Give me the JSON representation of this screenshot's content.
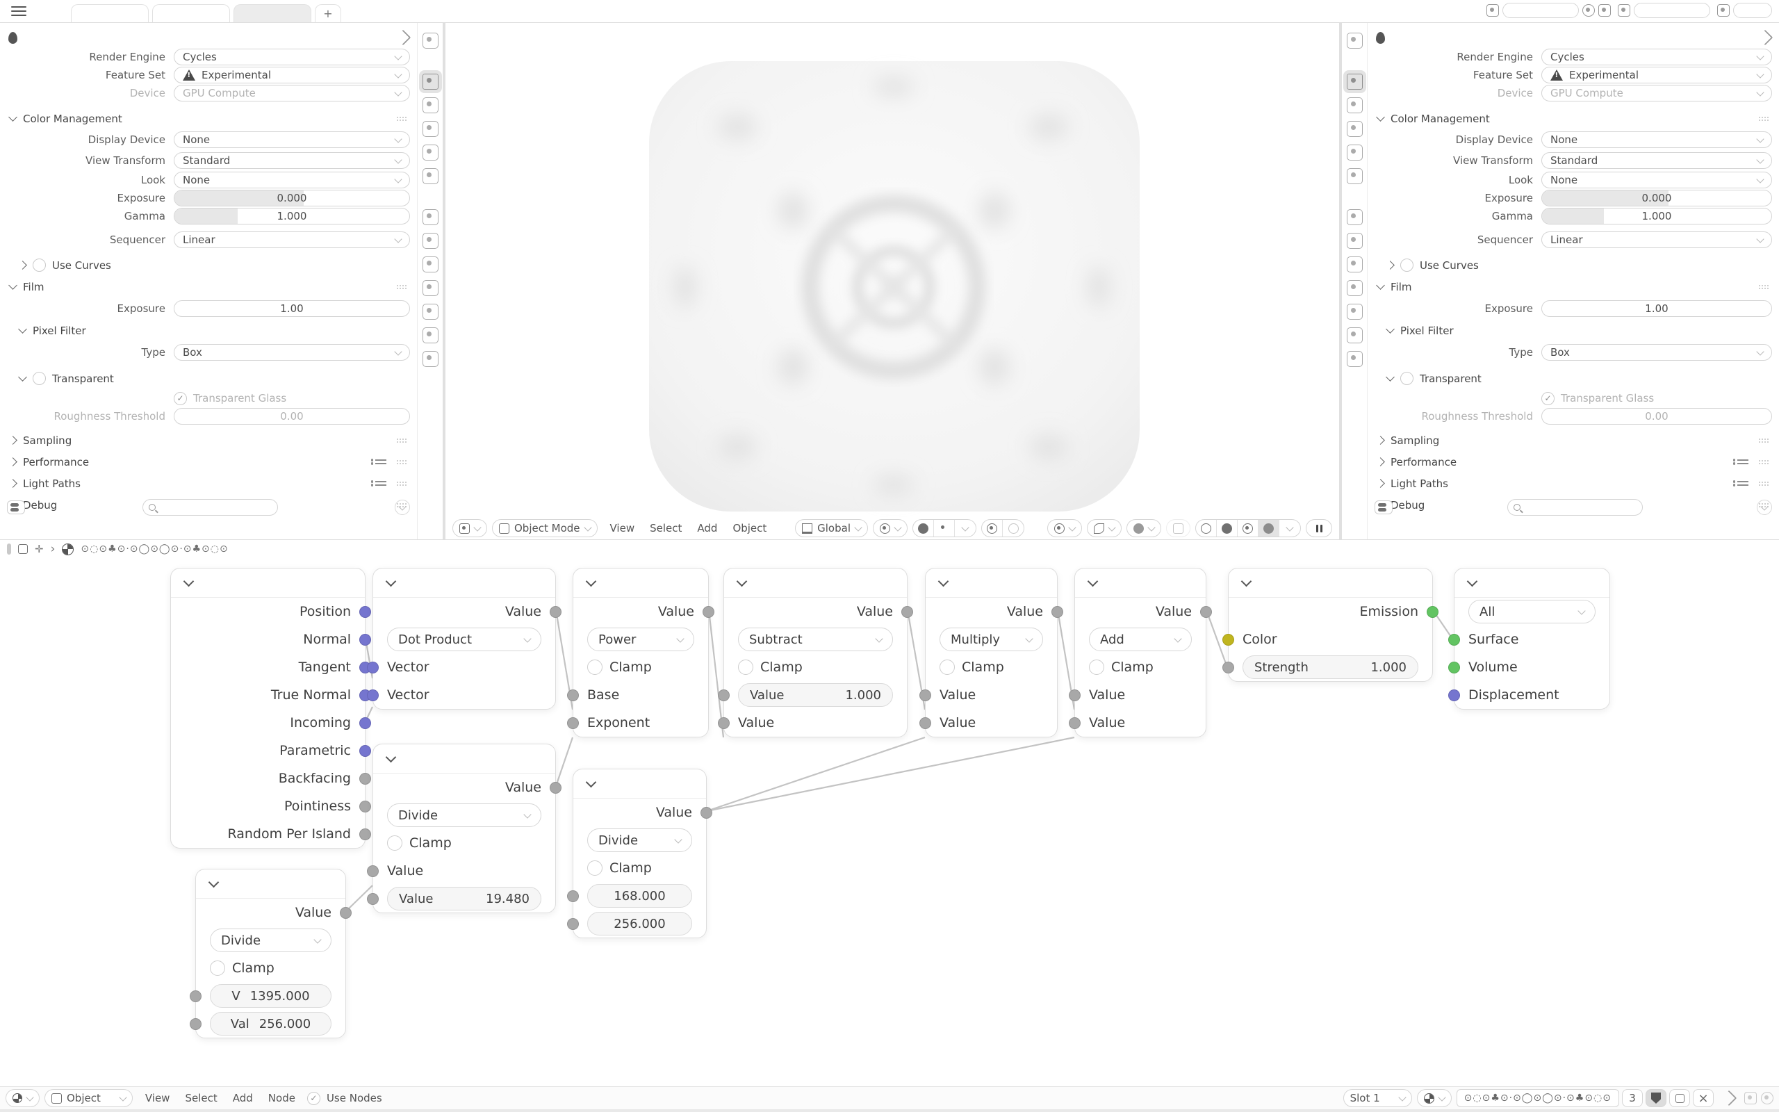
{
  "topbar": {
    "tabs": [
      "",
      "",
      ""
    ],
    "new_tab": "+"
  },
  "props": {
    "render_engine": {
      "label": "Render Engine",
      "value": "Cycles"
    },
    "feature_set": {
      "label": "Feature Set",
      "value": "Experimental"
    },
    "device": {
      "label": "Device",
      "value": "GPU Compute"
    },
    "color_management": "Color Management",
    "display_device": {
      "label": "Display Device",
      "value": "None"
    },
    "view_transform": {
      "label": "View Transform",
      "value": "Standard"
    },
    "look": {
      "label": "Look",
      "value": "None"
    },
    "exposure": {
      "label": "Exposure",
      "value": "0.000"
    },
    "gamma": {
      "label": "Gamma",
      "value": "1.000"
    },
    "sequencer": {
      "label": "Sequencer",
      "value": "Linear"
    },
    "use_curves": "Use Curves",
    "film": "Film",
    "film_exposure": {
      "label": "Exposure",
      "value": "1.00"
    },
    "pixel_filter": "Pixel Filter",
    "type": {
      "label": "Type",
      "value": "Box"
    },
    "transparent": "Transparent",
    "transparent_glass": "Transparent Glass",
    "roughness_threshold": {
      "label": "Roughness Threshold",
      "value": "0.00"
    },
    "sampling": "Sampling",
    "performance": "Performance",
    "light_paths": "Light Paths",
    "debug": "Debug",
    "tab_icons": [
      "tool-icon",
      "render-icon",
      "output-icon",
      "view-layer-icon",
      "scene-icon",
      "world-icon",
      "object-icon",
      "modifiers-icon",
      "particles-icon",
      "physics-icon",
      "constraints-icon",
      "object-data-icon",
      "material-icon"
    ]
  },
  "viewport": {
    "mode": "Object Mode",
    "menus": [
      "View",
      "Select",
      "Add",
      "Object"
    ],
    "orientation": "Global",
    "header_icons": [
      "editor-type-icon",
      "proportional-icon",
      "snap-magnet-icon",
      "pivot-icon",
      "visibility-icon",
      "gizmo-icon",
      "overlays-icon",
      "xray-icon",
      "shading-wireframe-icon",
      "shading-solid-icon",
      "shading-material-icon",
      "shading-rendered-icon",
      "pause-icon"
    ]
  },
  "node_editor": {
    "breadcrumb": {
      "separator": "›",
      "material": "⊙◌⊙♣⊙·⊙◯⊙◯⊙·⊙♣⊙◌⊙"
    },
    "footer": {
      "object": "Object",
      "menus": [
        "View",
        "Select",
        "Add",
        "Node"
      ],
      "use_nodes": "Use Nodes",
      "slot": "Slot 1",
      "material_name": "⊙◌⊙♣⊙·⊙◯⊙◯⊙·⊙♣⊙◌⊙",
      "users_count": "3"
    },
    "nodes": {
      "geometry": {
        "outputs": [
          "Position",
          "Normal",
          "Tangent",
          "True Normal",
          "Incoming",
          "Parametric",
          "Backfacing",
          "Pointiness",
          "Random Per Island"
        ]
      },
      "vector_math": {
        "output": "Value",
        "operation": "Dot Product",
        "inputs": [
          "Vector",
          "Vector"
        ]
      },
      "math_divide_a": {
        "output": "Value",
        "operation": "Divide",
        "clamp": "Clamp",
        "input": "Value",
        "field_label": "Value",
        "field_value": "19.480"
      },
      "math_power": {
        "output": "Value",
        "operation": "Power",
        "clamp": "Clamp",
        "inputs": [
          "Base",
          "Exponent"
        ]
      },
      "math_divide_b": {
        "output": "Value",
        "operation": "Divide",
        "clamp": "Clamp",
        "fields": [
          "168.000",
          "256.000"
        ]
      },
      "math_subtract": {
        "output": "Value",
        "operation": "Subtract",
        "clamp": "Clamp",
        "field_label": "Value",
        "field_value": "1.000",
        "input": "Value"
      },
      "math_multiply": {
        "output": "Value",
        "operation": "Multiply",
        "clamp": "Clamp",
        "inputs": [
          "Value",
          "Value"
        ]
      },
      "math_add": {
        "output": "Value",
        "operation": "Add",
        "clamp": "Clamp",
        "inputs": [
          "Value",
          "Value"
        ]
      },
      "math_divide_c": {
        "output": "Value",
        "operation": "Divide",
        "clamp": "Clamp",
        "fields": [
          {
            "label": "V",
            "value": "1395.000"
          },
          {
            "label": "Val",
            "value": "256.000"
          }
        ]
      },
      "emission": {
        "output": "Emission",
        "color_input": "Color",
        "strength_label": "Strength",
        "strength_value": "1.000"
      },
      "material_output": {
        "target": "All",
        "inputs": [
          "Surface",
          "Volume",
          "Displacement"
        ]
      }
    }
  },
  "colors": {
    "socket_vector": "#7575cf",
    "socket_value": "#a8a8a8",
    "socket_color": "#c0b51f",
    "socket_shader": "#62c462",
    "accent_active_tab": "#e3e3e3"
  },
  "glyphs": {
    "check": "✓",
    "close": "×"
  }
}
